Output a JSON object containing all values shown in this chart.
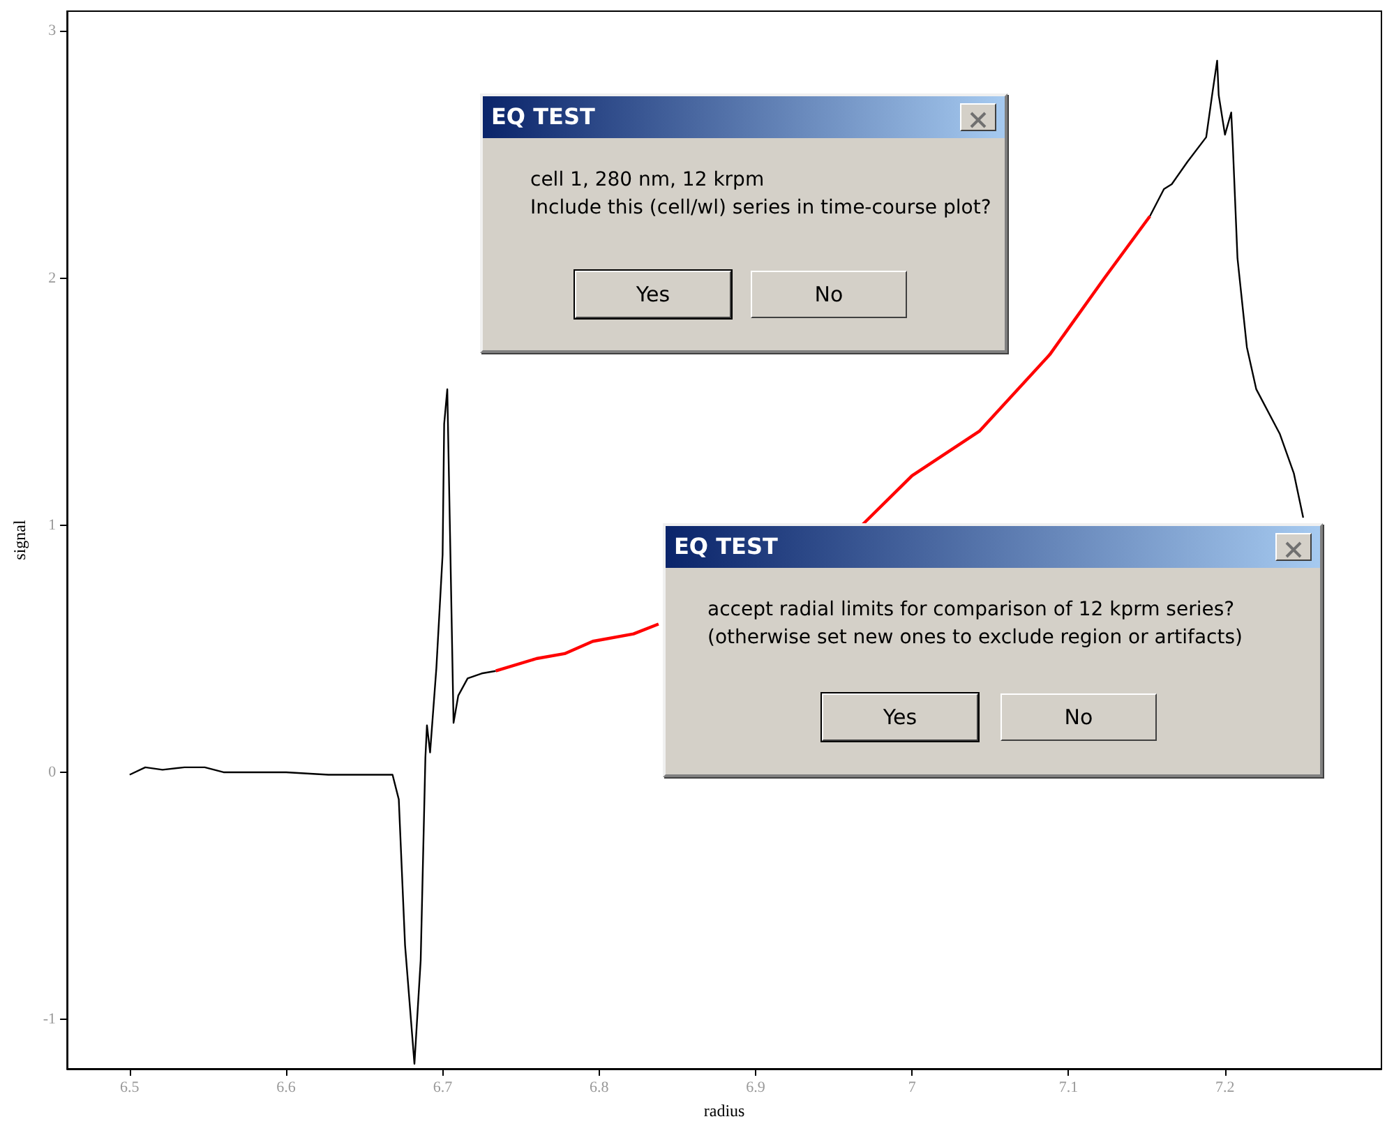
{
  "chart_data": {
    "type": "line",
    "xlabel": "radius",
    "ylabel": "signal",
    "xlim": [
      6.46,
      7.3
    ],
    "xticks": [
      6.5,
      6.6,
      6.7,
      6.8,
      6.9,
      7,
      7.1,
      7.2
    ],
    "ylim": [
      -1.2,
      3.08
    ],
    "yticks": [
      -1,
      0,
      1,
      2,
      3
    ],
    "grid": false,
    "marker": "none",
    "line_style": "solid",
    "series": [
      {
        "color": "#000000",
        "x": [
          6.5,
          6.51,
          6.521,
          6.535,
          6.548,
          6.56,
          6.6,
          6.627,
          6.668,
          6.672,
          6.676,
          6.682,
          6.686,
          6.689,
          6.69,
          6.692,
          6.696,
          6.7,
          6.701,
          6.703,
          6.705,
          6.707,
          6.71,
          6.716,
          6.725,
          6.734,
          6.95,
          7.152,
          7.161,
          7.166,
          7.176,
          7.188,
          7.192,
          7.195,
          7.196,
          7.2,
          7.204,
          7.205,
          7.208,
          7.214,
          7.22,
          7.235,
          7.244,
          7.25
        ],
        "values": [
          -0.01,
          0.02,
          0.01,
          0.02,
          0.02,
          0,
          0,
          -0.01,
          -0.01,
          -0.11,
          -0.7,
          -1.18,
          -0.76,
          0.06,
          0.19,
          0.08,
          0.42,
          0.88,
          1.41,
          1.55,
          0.88,
          0.2,
          0.31,
          0.38,
          0.4,
          0.41,
          null,
          2.25,
          2.36,
          2.38,
          2.47,
          2.57,
          2.75,
          2.88,
          2.74,
          2.58,
          2.67,
          2.54,
          2.08,
          1.72,
          1.55,
          1.37,
          1.21,
          1.03
        ]
      },
      {
        "color": "#ff0000",
        "x": [
          6.734,
          6.76,
          6.778,
          6.796,
          6.822,
          6.838,
          6.9,
          6.968,
          7.0,
          7.043,
          7.088,
          7.123,
          7.152
        ],
        "values": [
          0.41,
          0.46,
          0.48,
          0.53,
          0.56,
          0.6,
          null,
          1.0,
          1.2,
          1.38,
          1.69,
          2.0,
          2.25
        ]
      }
    ],
    "annotations": [
      "EQ TEST",
      "cell 1, 280 nm, 12 krpm",
      "Include this (cell/wl) series in time-course plot?",
      "Yes",
      "No",
      "EQ TEST",
      "accept radial limits for comparison of 12 kprm series?",
      "(otherwise set new ones to exclude region or artifacts)",
      "Yes",
      "No"
    ]
  }
}
